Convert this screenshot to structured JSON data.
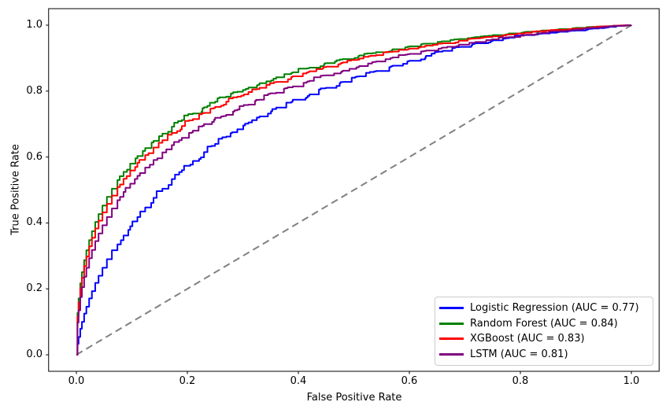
{
  "chart_data": {
    "type": "line",
    "subtype": "roc-curves",
    "xlabel": "False Positive Rate",
    "ylabel": "True Positive Rate",
    "xlim": [
      -0.05,
      1.05
    ],
    "ylim": [
      -0.05,
      1.05
    ],
    "grid": false,
    "xtick_labels": [
      "0.0",
      "0.2",
      "0.4",
      "0.6",
      "0.8",
      "1.0"
    ],
    "ytick_labels": [
      "0.0",
      "0.2",
      "0.4",
      "0.6",
      "0.8",
      "1.0"
    ],
    "xticks": [
      0.0,
      0.2,
      0.4,
      0.6,
      0.8,
      1.0
    ],
    "yticks": [
      0.0,
      0.2,
      0.4,
      0.6,
      0.8,
      1.0
    ],
    "legend": {
      "position": "lower right",
      "border_color": "#cccccc",
      "background": "#ffffff"
    },
    "reference_line": {
      "style": "dashed",
      "color": "#808080",
      "points": [
        [
          0,
          0
        ],
        [
          1,
          1
        ]
      ]
    },
    "series": [
      {
        "name": "logistic-regression",
        "label": "Logistic Regression (AUC = 0.77)",
        "auc": 0.77,
        "color": "#0000ff",
        "points": [
          [
            0,
            0
          ],
          [
            0.002,
            0.033
          ],
          [
            0.004,
            0.054
          ],
          [
            0.007,
            0.079
          ],
          [
            0.01,
            0.1
          ],
          [
            0.014,
            0.125
          ],
          [
            0.018,
            0.146
          ],
          [
            0.023,
            0.171
          ],
          [
            0.028,
            0.193
          ],
          [
            0.034,
            0.218
          ],
          [
            0.04,
            0.24
          ],
          [
            0.047,
            0.264
          ],
          [
            0.055,
            0.29
          ],
          [
            0.064,
            0.317
          ],
          [
            0.074,
            0.335
          ],
          [
            0.085,
            0.362
          ],
          [
            0.097,
            0.39
          ],
          [
            0.11,
            0.418
          ],
          [
            0.124,
            0.447
          ],
          [
            0.139,
            0.476
          ],
          [
            0.155,
            0.504
          ],
          [
            0.172,
            0.533
          ],
          [
            0.19,
            0.56
          ],
          [
            0.21,
            0.588
          ],
          [
            0.23,
            0.615
          ],
          [
            0.25,
            0.64
          ],
          [
            0.27,
            0.662
          ],
          [
            0.29,
            0.684
          ],
          [
            0.31,
            0.705
          ],
          [
            0.33,
            0.723
          ],
          [
            0.36,
            0.75
          ],
          [
            0.39,
            0.774
          ],
          [
            0.42,
            0.79
          ],
          [
            0.45,
            0.81
          ],
          [
            0.48,
            0.828
          ],
          [
            0.51,
            0.845
          ],
          [
            0.54,
            0.861
          ],
          [
            0.57,
            0.877
          ],
          [
            0.6,
            0.892
          ],
          [
            0.63,
            0.907
          ],
          [
            0.66,
            0.922
          ],
          [
            0.69,
            0.934
          ],
          [
            0.72,
            0.945
          ],
          [
            0.75,
            0.954
          ],
          [
            0.78,
            0.962
          ],
          [
            0.81,
            0.97
          ],
          [
            0.84,
            0.975
          ],
          [
            0.87,
            0.98
          ],
          [
            0.9,
            0.984
          ],
          [
            0.93,
            0.99
          ],
          [
            0.96,
            0.995
          ],
          [
            0.98,
            0.998
          ],
          [
            1,
            1
          ]
        ]
      },
      {
        "name": "random-forest",
        "label": "Random Forest (AUC = 0.84)",
        "auc": 0.84,
        "color": "#008000",
        "points": [
          [
            0,
            0
          ],
          [
            0.002,
            0.127
          ],
          [
            0.004,
            0.171
          ],
          [
            0.007,
            0.217
          ],
          [
            0.01,
            0.251
          ],
          [
            0.014,
            0.287
          ],
          [
            0.018,
            0.317
          ],
          [
            0.023,
            0.348
          ],
          [
            0.028,
            0.375
          ],
          [
            0.034,
            0.403
          ],
          [
            0.04,
            0.427
          ],
          [
            0.047,
            0.453
          ],
          [
            0.055,
            0.479
          ],
          [
            0.064,
            0.504
          ],
          [
            0.074,
            0.53
          ],
          [
            0.085,
            0.555
          ],
          [
            0.097,
            0.58
          ],
          [
            0.11,
            0.603
          ],
          [
            0.124,
            0.627
          ],
          [
            0.139,
            0.649
          ],
          [
            0.155,
            0.671
          ],
          [
            0.172,
            0.692
          ],
          [
            0.19,
            0.712
          ],
          [
            0.21,
            0.732
          ],
          [
            0.23,
            0.751
          ],
          [
            0.25,
            0.768
          ],
          [
            0.27,
            0.783
          ],
          [
            0.29,
            0.798
          ],
          [
            0.31,
            0.811
          ],
          [
            0.33,
            0.824
          ],
          [
            0.36,
            0.842
          ],
          [
            0.39,
            0.857
          ],
          [
            0.42,
            0.871
          ],
          [
            0.45,
            0.885
          ],
          [
            0.48,
            0.897
          ],
          [
            0.51,
            0.908
          ],
          [
            0.54,
            0.918
          ],
          [
            0.57,
            0.927
          ],
          [
            0.6,
            0.936
          ],
          [
            0.63,
            0.944
          ],
          [
            0.66,
            0.951
          ],
          [
            0.69,
            0.958
          ],
          [
            0.72,
            0.964
          ],
          [
            0.75,
            0.97
          ],
          [
            0.78,
            0.975
          ],
          [
            0.81,
            0.98
          ],
          [
            0.84,
            0.984
          ],
          [
            0.87,
            0.988
          ],
          [
            0.9,
            0.992
          ],
          [
            0.93,
            0.995
          ],
          [
            0.96,
            0.997
          ],
          [
            0.98,
            0.999
          ],
          [
            1,
            1
          ]
        ]
      },
      {
        "name": "xgboost",
        "label": "XGBoost (AUC = 0.83)",
        "auc": 0.83,
        "color": "#ff0000",
        "points": [
          [
            0,
            0
          ],
          [
            0.002,
            0.116
          ],
          [
            0.004,
            0.158
          ],
          [
            0.007,
            0.202
          ],
          [
            0.01,
            0.234
          ],
          [
            0.014,
            0.269
          ],
          [
            0.018,
            0.298
          ],
          [
            0.023,
            0.329
          ],
          [
            0.028,
            0.355
          ],
          [
            0.034,
            0.383
          ],
          [
            0.04,
            0.407
          ],
          [
            0.047,
            0.432
          ],
          [
            0.055,
            0.458
          ],
          [
            0.064,
            0.483
          ],
          [
            0.074,
            0.509
          ],
          [
            0.085,
            0.534
          ],
          [
            0.097,
            0.559
          ],
          [
            0.11,
            0.583
          ],
          [
            0.124,
            0.606
          ],
          [
            0.139,
            0.629
          ],
          [
            0.155,
            0.651
          ],
          [
            0.172,
            0.673
          ],
          [
            0.19,
            0.694
          ],
          [
            0.21,
            0.715
          ],
          [
            0.23,
            0.734
          ],
          [
            0.25,
            0.752
          ],
          [
            0.27,
            0.768
          ],
          [
            0.29,
            0.783
          ],
          [
            0.31,
            0.797
          ],
          [
            0.33,
            0.81
          ],
          [
            0.36,
            0.828
          ],
          [
            0.39,
            0.845
          ],
          [
            0.42,
            0.86
          ],
          [
            0.45,
            0.874
          ],
          [
            0.48,
            0.887
          ],
          [
            0.51,
            0.899
          ],
          [
            0.54,
            0.909
          ],
          [
            0.57,
            0.92
          ],
          [
            0.6,
            0.929
          ],
          [
            0.63,
            0.938
          ],
          [
            0.66,
            0.945
          ],
          [
            0.69,
            0.953
          ],
          [
            0.72,
            0.96
          ],
          [
            0.75,
            0.966
          ],
          [
            0.78,
            0.972
          ],
          [
            0.81,
            0.977
          ],
          [
            0.84,
            0.982
          ],
          [
            0.87,
            0.986
          ],
          [
            0.9,
            0.99
          ],
          [
            0.93,
            0.994
          ],
          [
            0.96,
            0.997
          ],
          [
            0.98,
            0.999
          ],
          [
            1,
            1
          ]
        ]
      },
      {
        "name": "lstm",
        "label": "LSTM (AUC = 0.81)",
        "auc": 0.81,
        "color": "#800080",
        "points": [
          [
            0,
            0
          ],
          [
            0.002,
            0.098
          ],
          [
            0.004,
            0.135
          ],
          [
            0.007,
            0.175
          ],
          [
            0.01,
            0.205
          ],
          [
            0.014,
            0.237
          ],
          [
            0.018,
            0.264
          ],
          [
            0.023,
            0.293
          ],
          [
            0.028,
            0.318
          ],
          [
            0.034,
            0.345
          ],
          [
            0.04,
            0.368
          ],
          [
            0.047,
            0.393
          ],
          [
            0.055,
            0.418
          ],
          [
            0.064,
            0.444
          ],
          [
            0.074,
            0.469
          ],
          [
            0.085,
            0.494
          ],
          [
            0.097,
            0.519
          ],
          [
            0.11,
            0.543
          ],
          [
            0.124,
            0.568
          ],
          [
            0.139,
            0.591
          ],
          [
            0.155,
            0.614
          ],
          [
            0.172,
            0.636
          ],
          [
            0.19,
            0.658
          ],
          [
            0.21,
            0.68
          ],
          [
            0.23,
            0.7
          ],
          [
            0.25,
            0.719
          ],
          [
            0.27,
            0.728
          ],
          [
            0.29,
            0.744
          ],
          [
            0.31,
            0.759
          ],
          [
            0.33,
            0.774
          ],
          [
            0.36,
            0.795
          ],
          [
            0.39,
            0.814
          ],
          [
            0.42,
            0.831
          ],
          [
            0.45,
            0.848
          ],
          [
            0.48,
            0.862
          ],
          [
            0.51,
            0.876
          ],
          [
            0.54,
            0.89
          ],
          [
            0.57,
            0.902
          ],
          [
            0.6,
            0.913
          ],
          [
            0.63,
            0.923
          ],
          [
            0.66,
            0.932
          ],
          [
            0.69,
            0.941
          ],
          [
            0.72,
            0.949
          ],
          [
            0.75,
            0.957
          ],
          [
            0.78,
            0.964
          ],
          [
            0.81,
            0.971
          ],
          [
            0.84,
            0.977
          ],
          [
            0.87,
            0.982
          ],
          [
            0.9,
            0.987
          ],
          [
            0.93,
            0.992
          ],
          [
            0.96,
            0.996
          ],
          [
            0.98,
            0.998
          ],
          [
            1,
            1
          ]
        ]
      }
    ]
  }
}
